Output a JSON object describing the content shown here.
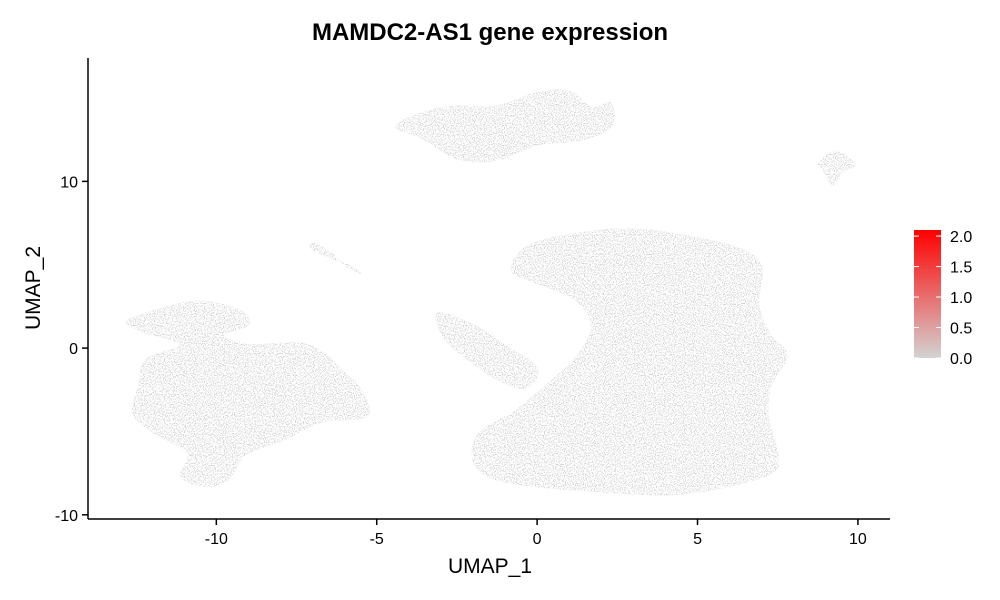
{
  "chart_data": {
    "type": "scatter",
    "title": "MAMDC2-AS1 gene expression",
    "xlabel": "UMAP_1",
    "ylabel": "UMAP_2",
    "xlim": [
      -14.0,
      11.0
    ],
    "ylim": [
      -10.25,
      17.4
    ],
    "x_ticks": [
      -10,
      -5,
      0,
      5,
      10
    ],
    "y_ticks": [
      -10,
      0,
      10
    ],
    "x_tick_labels": [
      "-10",
      "-5",
      "0",
      "5",
      "10"
    ],
    "y_tick_labels": [
      "-10",
      "0",
      "10"
    ],
    "grid": false,
    "point_color": "#D3D3D3",
    "colorbar": {
      "position": "right",
      "min": 0.0,
      "max": 2.1,
      "ticks": [
        0.0,
        0.5,
        1.0,
        1.5,
        2.0
      ],
      "tick_labels": [
        "0.0",
        "0.5",
        "1.0",
        "1.5",
        "2.0"
      ],
      "low_color": "#D3D3D3",
      "high_color": "#FF0000"
    },
    "clusters": [
      {
        "id": "top-cluster",
        "expression": 0.0,
        "points": [
          [
            -4.4,
            13.3
          ],
          [
            -3.6,
            14.1
          ],
          [
            -2.6,
            14.5
          ],
          [
            -1.3,
            14.5
          ],
          [
            0.0,
            15.3
          ],
          [
            1.0,
            15.4
          ],
          [
            1.7,
            14.4
          ],
          [
            2.3,
            14.7
          ],
          [
            2.3,
            13.3
          ],
          [
            1.4,
            12.5
          ],
          [
            0.0,
            12.2
          ],
          [
            -1.2,
            11.3
          ],
          [
            -2.4,
            11.3
          ],
          [
            -3.6,
            12.6
          ]
        ]
      },
      {
        "id": "right-small-cluster",
        "expression": 0.0,
        "points": [
          [
            8.8,
            11.1
          ],
          [
            9.3,
            11.8
          ],
          [
            9.9,
            11.0
          ],
          [
            9.5,
            10.6
          ],
          [
            9.2,
            9.8
          ],
          [
            8.9,
            10.8
          ]
        ]
      },
      {
        "id": "mid-thin-cluster",
        "expression": 0.0,
        "points": [
          [
            -7.0,
            6.3
          ],
          [
            -6.5,
            5.8
          ],
          [
            -6.0,
            5.0
          ],
          [
            -5.5,
            4.5
          ],
          [
            -5.8,
            4.9
          ],
          [
            -6.4,
            5.4
          ],
          [
            -7.0,
            5.9
          ]
        ]
      },
      {
        "id": "left-cluster",
        "expression": 0.0,
        "points": [
          [
            -12.8,
            1.6
          ],
          [
            -12.0,
            2.2
          ],
          [
            -10.6,
            2.8
          ],
          [
            -9.3,
            2.3
          ],
          [
            -9.0,
            1.4
          ],
          [
            -9.8,
            0.8
          ],
          [
            -9.0,
            0.2
          ],
          [
            -7.4,
            0.3
          ],
          [
            -6.6,
            -0.4
          ],
          [
            -6.1,
            -1.3
          ],
          [
            -5.5,
            -2.5
          ],
          [
            -5.3,
            -4.1
          ],
          [
            -6.7,
            -4.4
          ],
          [
            -7.9,
            -5.5
          ],
          [
            -9.1,
            -6.4
          ],
          [
            -9.6,
            -7.8
          ],
          [
            -10.3,
            -8.3
          ],
          [
            -11.1,
            -7.7
          ],
          [
            -10.9,
            -6.3
          ],
          [
            -12.0,
            -5.0
          ],
          [
            -12.6,
            -3.9
          ],
          [
            -12.4,
            -2.2
          ],
          [
            -12.2,
            -0.7
          ],
          [
            -11.1,
            0.2
          ],
          [
            -12.3,
            1.0
          ]
        ]
      },
      {
        "id": "bridge-cluster",
        "expression": 0.0,
        "points": [
          [
            -3.1,
            2.1
          ],
          [
            -2.0,
            1.4
          ],
          [
            -1.2,
            0.4
          ],
          [
            0.0,
            -1.2
          ],
          [
            -0.4,
            -2.4
          ],
          [
            -1.3,
            -1.8
          ],
          [
            -2.2,
            -0.6
          ],
          [
            -2.9,
            0.6
          ]
        ]
      },
      {
        "id": "main-cluster",
        "expression": 0.0,
        "points": [
          [
            -0.8,
            4.7
          ],
          [
            -0.2,
            6.2
          ],
          [
            1.7,
            7.0
          ],
          [
            3.3,
            7.1
          ],
          [
            5.0,
            6.6
          ],
          [
            6.4,
            5.9
          ],
          [
            7.0,
            4.8
          ],
          [
            6.9,
            2.6
          ],
          [
            7.3,
            0.7
          ],
          [
            7.8,
            -0.4
          ],
          [
            7.3,
            -2.2
          ],
          [
            7.2,
            -4.1
          ],
          [
            7.5,
            -6.4
          ],
          [
            7.3,
            -7.5
          ],
          [
            5.7,
            -8.4
          ],
          [
            4.0,
            -8.8
          ],
          [
            2.0,
            -8.6
          ],
          [
            0.0,
            -8.3
          ],
          [
            -1.4,
            -7.8
          ],
          [
            -2.0,
            -6.7
          ],
          [
            -1.8,
            -5.1
          ],
          [
            -0.7,
            -3.8
          ],
          [
            0.3,
            -2.2
          ],
          [
            1.2,
            -0.6
          ],
          [
            1.7,
            1.3
          ],
          [
            1.2,
            2.9
          ],
          [
            0.0,
            3.9
          ]
        ]
      }
    ]
  }
}
